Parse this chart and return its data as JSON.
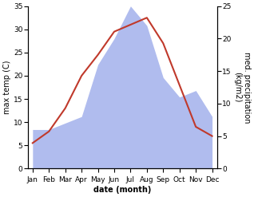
{
  "months": [
    "Jan",
    "Feb",
    "Mar",
    "Apr",
    "May",
    "Jun",
    "Jul",
    "Aug",
    "Sep",
    "Oct",
    "Nov",
    "Dec"
  ],
  "temp": [
    5.5,
    8.0,
    13.0,
    20.0,
    24.5,
    29.5,
    31.0,
    32.5,
    27.0,
    18.0,
    9.0,
    7.0
  ],
  "precip": [
    6.0,
    6.0,
    7.0,
    8.0,
    16.0,
    20.0,
    25.0,
    22.0,
    14.0,
    11.0,
    12.0,
    8.0
  ],
  "temp_color": "#c0392b",
  "precip_color": "#b0bcee",
  "temp_ylim": [
    0,
    35
  ],
  "precip_ylim": [
    0,
    25
  ],
  "temp_yticks": [
    0,
    5,
    10,
    15,
    20,
    25,
    30,
    35
  ],
  "precip_yticks": [
    0,
    5,
    10,
    15,
    20,
    25
  ],
  "xlabel": "date (month)",
  "ylabel_left": "max temp (C)",
  "ylabel_right": "med. precipitation\n(kg/m2)",
  "axis_fontsize": 7,
  "tick_fontsize": 6.5,
  "background_color": "#ffffff"
}
